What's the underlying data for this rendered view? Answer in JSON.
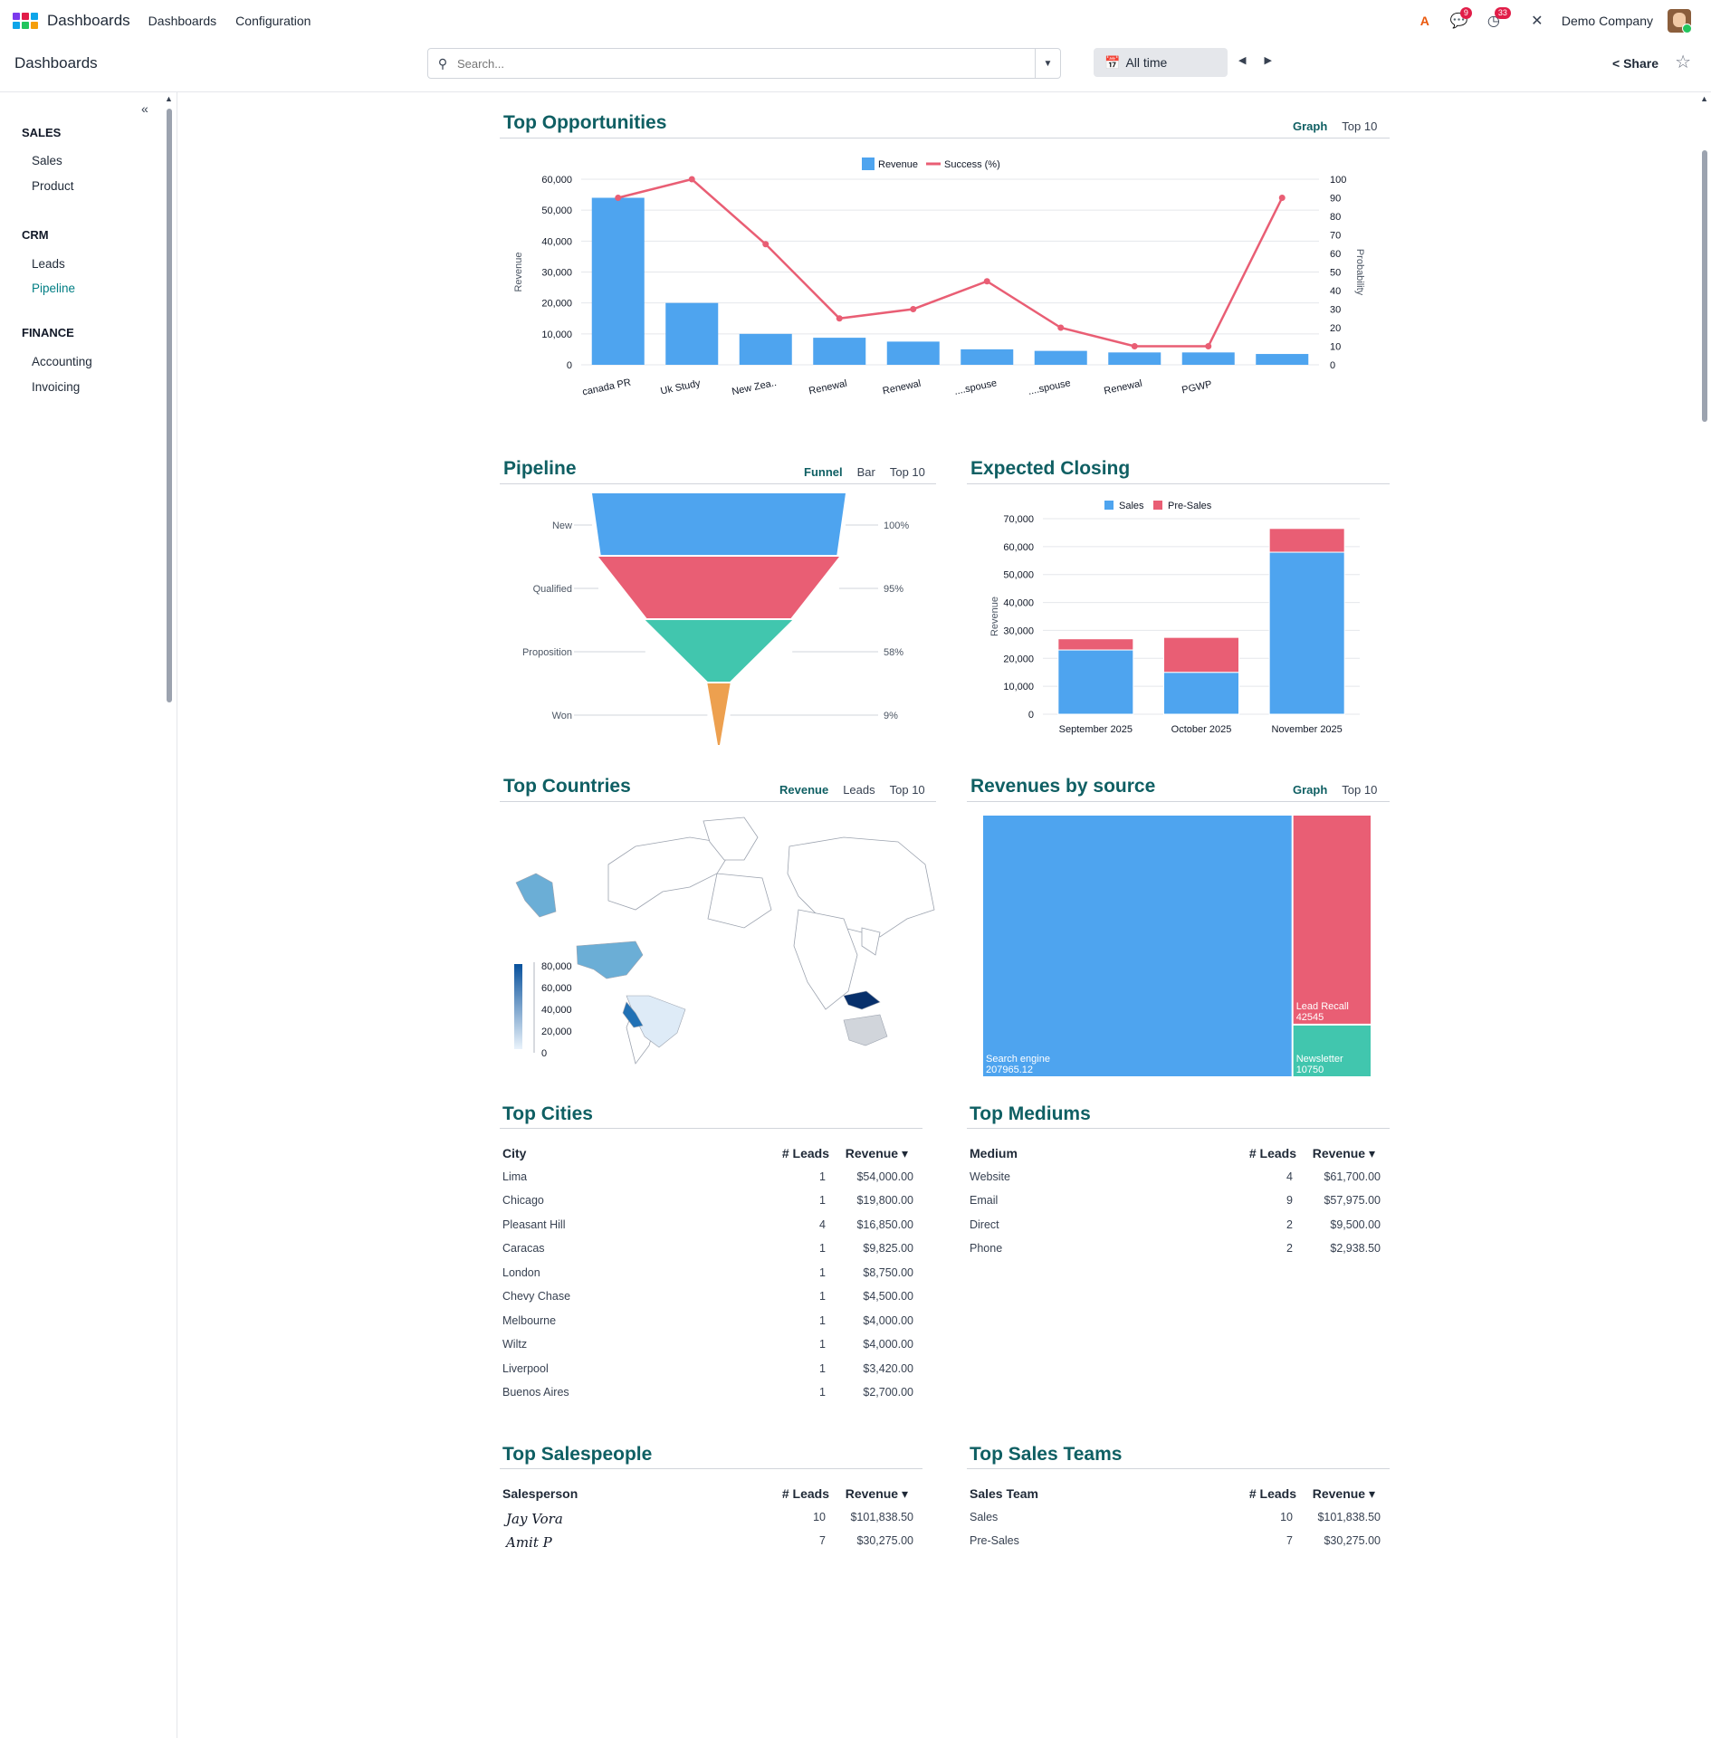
{
  "navbar": {
    "app_name": "Dashboards",
    "menu": [
      "Dashboards",
      "Configuration"
    ],
    "chat_badge": "9",
    "activity_badge": "33",
    "company": "Demo Company"
  },
  "control_panel": {
    "breadcrumb": "Dashboards",
    "search_placeholder": "Search...",
    "period_label": "All time",
    "share_label": "Share"
  },
  "sidebar": {
    "groups": [
      {
        "label": "SALES",
        "items": [
          "Sales",
          "Product"
        ]
      },
      {
        "label": "CRM",
        "items": [
          "Leads",
          "Pipeline"
        ]
      },
      {
        "label": "FINANCE",
        "items": [
          "Accounting",
          "Invoicing"
        ]
      }
    ],
    "active_item": "Pipeline"
  },
  "colors": {
    "accent": "#017e84",
    "title": "#0f5f63",
    "blue": "#4ea4ef",
    "red": "#e95e74",
    "teal": "#41c6ae",
    "orange": "#eda04f"
  },
  "cards": {
    "top_opportunities": {
      "title": "Top Opportunities",
      "links": [
        "Graph",
        "Top 10"
      ]
    },
    "pipeline": {
      "title": "Pipeline",
      "links": [
        "Funnel",
        "Bar",
        "Top 10"
      ]
    },
    "expected_closing": {
      "title": "Expected Closing"
    },
    "top_countries": {
      "title": "Top Countries",
      "links": [
        "Revenue",
        "Leads",
        "Top 10"
      ]
    },
    "revenues_by_source": {
      "title": "Revenues by source",
      "links": [
        "Graph",
        "Top 10"
      ]
    },
    "top_cities": {
      "title": "Top Cities"
    },
    "top_mediums": {
      "title": "Top Mediums"
    },
    "top_salespeople": {
      "title": "Top Salespeople"
    },
    "top_sales_teams": {
      "title": "Top Sales Teams"
    }
  },
  "chart_data": [
    {
      "type": "bar",
      "title": "Top Opportunities",
      "categories": [
        "canada PR",
        "Uk Study",
        "New Zea..",
        "Renewal",
        "Renewal",
        "....spouse",
        "....spouse",
        "Renewal",
        "PGWP",
        ""
      ],
      "series": [
        {
          "name": "Revenue",
          "values": [
            54000,
            20000,
            10000,
            8750,
            7500,
            5000,
            4500,
            4000,
            4000,
            3500
          ],
          "axis": "left",
          "kind": "bar"
        },
        {
          "name": "Success (%)",
          "values": [
            90,
            100,
            65,
            25,
            30,
            45,
            20,
            10,
            10,
            90
          ],
          "axis": "right",
          "kind": "line"
        }
      ],
      "ylabel": "Revenue",
      "y2label": "Probability",
      "ylim": [
        0,
        60000
      ],
      "yticks": [
        "0",
        "10,000",
        "20,000",
        "30,000",
        "40,000",
        "50,000",
        "60,000"
      ],
      "y2lim": [
        0,
        100
      ],
      "y2ticks": [
        "0",
        "10",
        "20",
        "30",
        "40",
        "50",
        "60",
        "70",
        "80",
        "90",
        "100"
      ],
      "legend": "top-center",
      "grid": true
    },
    {
      "type": "funnel",
      "title": "Pipeline",
      "categories": [
        "New",
        "Qualified",
        "Proposition",
        "Won"
      ],
      "percent_labels": [
        "100%",
        "95%",
        "58%",
        "9%"
      ],
      "values": [
        100,
        95,
        58,
        9
      ]
    },
    {
      "type": "bar",
      "title": "Expected Closing",
      "stacked": true,
      "categories": [
        "September 2025",
        "October 2025",
        "November 2025"
      ],
      "series": [
        {
          "name": "Sales",
          "values": [
            23000,
            15000,
            58000
          ]
        },
        {
          "name": "Pre-Sales",
          "values": [
            4000,
            12500,
            8500
          ]
        }
      ],
      "ylabel": "Revenue",
      "ylim": [
        0,
        70000
      ],
      "yticks": [
        "0",
        "10,000",
        "20,000",
        "30,000",
        "40,000",
        "50,000",
        "60,000",
        "70,000"
      ],
      "legend": "top-center",
      "grid": true
    },
    {
      "type": "map",
      "title": "Top Countries",
      "colorbar_ticks": [
        "80,000",
        "60,000",
        "40,000",
        "20,000",
        "0"
      ]
    },
    {
      "type": "treemap",
      "title": "Revenues by source",
      "items": [
        {
          "name": "Search engine",
          "value_label": "207965.12",
          "value": 207965.12
        },
        {
          "name": "Lead Recall",
          "value_label": "42545",
          "value": 42545
        },
        {
          "name": "Newsletter",
          "value_label": "10750",
          "value": 10750
        }
      ]
    },
    {
      "type": "table",
      "title": "Top Cities",
      "columns": [
        "City",
        "# Leads",
        "Revenue"
      ],
      "rows": [
        [
          "Lima",
          "1",
          "$54,000.00"
        ],
        [
          "Chicago",
          "1",
          "$19,800.00"
        ],
        [
          "Pleasant Hill",
          "4",
          "$16,850.00"
        ],
        [
          "Caracas",
          "1",
          "$9,825.00"
        ],
        [
          "London",
          "1",
          "$8,750.00"
        ],
        [
          "Chevy Chase",
          "1",
          "$4,500.00"
        ],
        [
          "Melbourne",
          "1",
          "$4,000.00"
        ],
        [
          "Wiltz",
          "1",
          "$4,000.00"
        ],
        [
          "Liverpool",
          "1",
          "$3,420.00"
        ],
        [
          "Buenos Aires",
          "1",
          "$2,700.00"
        ]
      ]
    },
    {
      "type": "table",
      "title": "Top Mediums",
      "columns": [
        "Medium",
        "# Leads",
        "Revenue"
      ],
      "rows": [
        [
          "Website",
          "4",
          "$61,700.00"
        ],
        [
          "Email",
          "9",
          "$57,975.00"
        ],
        [
          "Direct",
          "2",
          "$9,500.00"
        ],
        [
          "Phone",
          "2",
          "$2,938.50"
        ]
      ]
    },
    {
      "type": "table",
      "title": "Top Salespeople",
      "columns": [
        "Salesperson",
        "# Leads",
        "Revenue"
      ],
      "rows": [
        [
          "Jay Vora",
          "10",
          "$101,838.50"
        ],
        [
          "Amit P",
          "7",
          "$30,275.00"
        ]
      ]
    },
    {
      "type": "table",
      "title": "Top Sales Teams",
      "columns": [
        "Sales Team",
        "# Leads",
        "Revenue"
      ],
      "rows": [
        [
          "Sales",
          "10",
          "$101,838.50"
        ],
        [
          "Pre-Sales",
          "7",
          "$30,275.00"
        ]
      ]
    }
  ]
}
